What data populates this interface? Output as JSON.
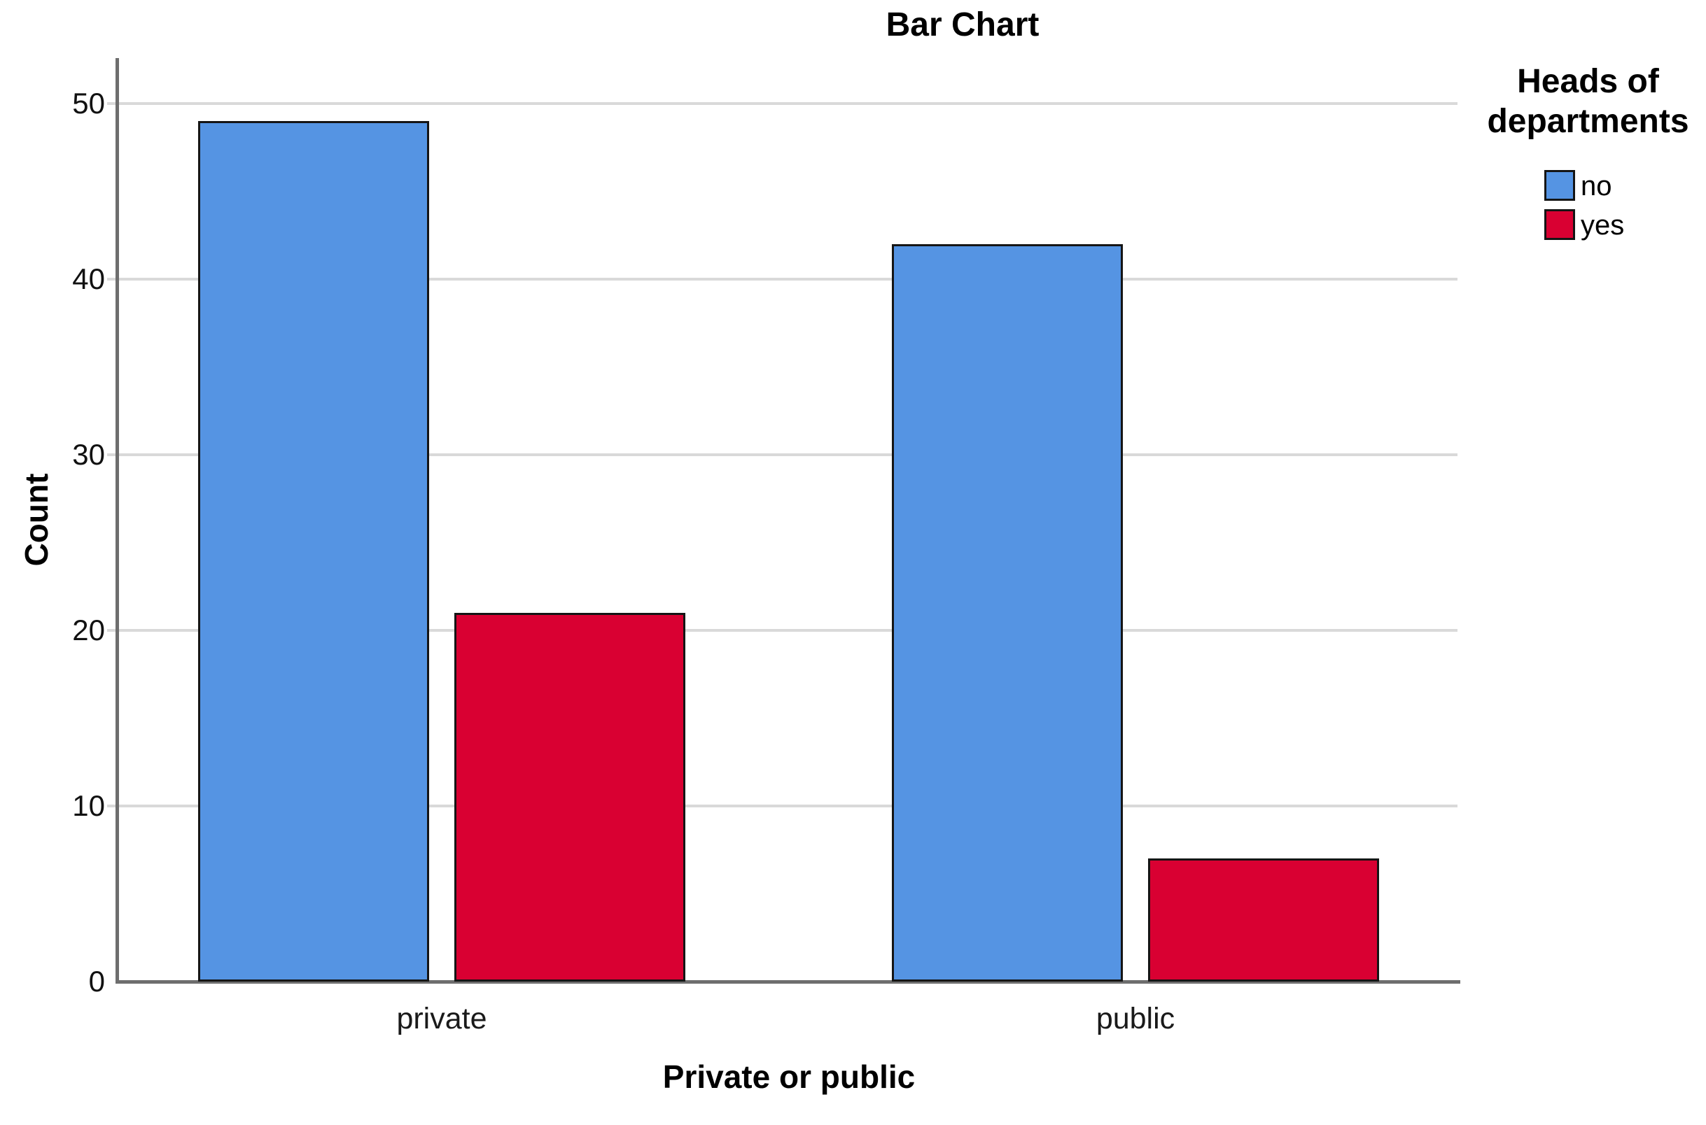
{
  "chart_data": {
    "type": "bar",
    "title": "Bar Chart",
    "xlabel": "Private or public",
    "ylabel": "Count",
    "categories": [
      "private",
      "public"
    ],
    "series": [
      {
        "name": "no",
        "color": "#5594E3",
        "values": [
          49,
          42
        ]
      },
      {
        "name": "yes",
        "color": "#D90032",
        "values": [
          21,
          7
        ]
      }
    ],
    "legend": {
      "title": "Heads of departments",
      "position": "top-right"
    },
    "ylim": [
      0,
      52.6
    ],
    "yticks": [
      0,
      10,
      20,
      30,
      40,
      50
    ],
    "grid": true,
    "colors": {
      "bar_border": "#151515",
      "gridline": "#d9d9d9",
      "axis_line": "#6e6e6e",
      "background": "#ffffff",
      "text": "#000000"
    }
  }
}
